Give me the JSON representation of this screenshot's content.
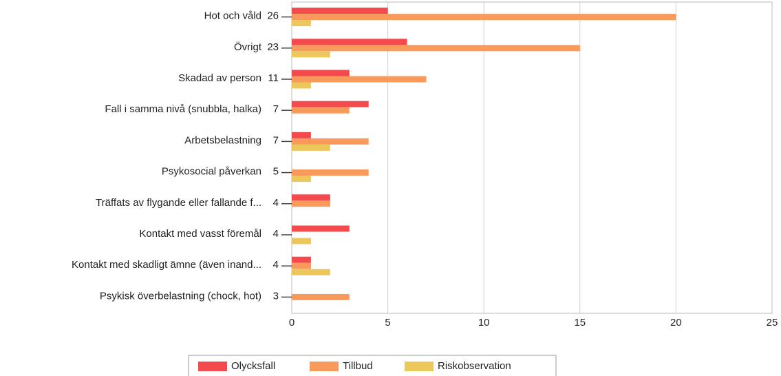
{
  "chart_data": {
    "type": "bar",
    "orientation": "horizontal",
    "categories": [
      "Hot och våld",
      "Övrigt",
      "Skadad av person",
      "Fall i samma nivå (snubbla, halka)",
      "Arbetsbelastning",
      "Psykosocial påverkan",
      "Träffats av flygande eller fallande f...",
      "Kontakt med vasst föremål",
      "Kontakt med skadligt ämne (även inand...",
      "Psykisk överbelastning (chock, hot)"
    ],
    "totals": [
      26,
      23,
      11,
      7,
      7,
      5,
      4,
      4,
      4,
      3
    ],
    "series": [
      {
        "name": "Olycksfall",
        "color": "#f34a4e",
        "values": [
          5,
          6,
          3,
          4,
          1,
          0,
          2,
          3,
          1,
          0
        ]
      },
      {
        "name": "Tillbud",
        "color": "#f89a5c",
        "values": [
          20,
          15,
          7,
          3,
          4,
          4,
          2,
          0,
          1,
          3
        ]
      },
      {
        "name": "Riskobservation",
        "color": "#ecc75b",
        "values": [
          1,
          2,
          1,
          0,
          2,
          1,
          0,
          1,
          2,
          0
        ]
      }
    ],
    "xlim": [
      0,
      25
    ],
    "xticks": [
      0,
      5,
      10,
      15,
      20,
      25
    ],
    "grid": true,
    "legend": "bottom"
  }
}
